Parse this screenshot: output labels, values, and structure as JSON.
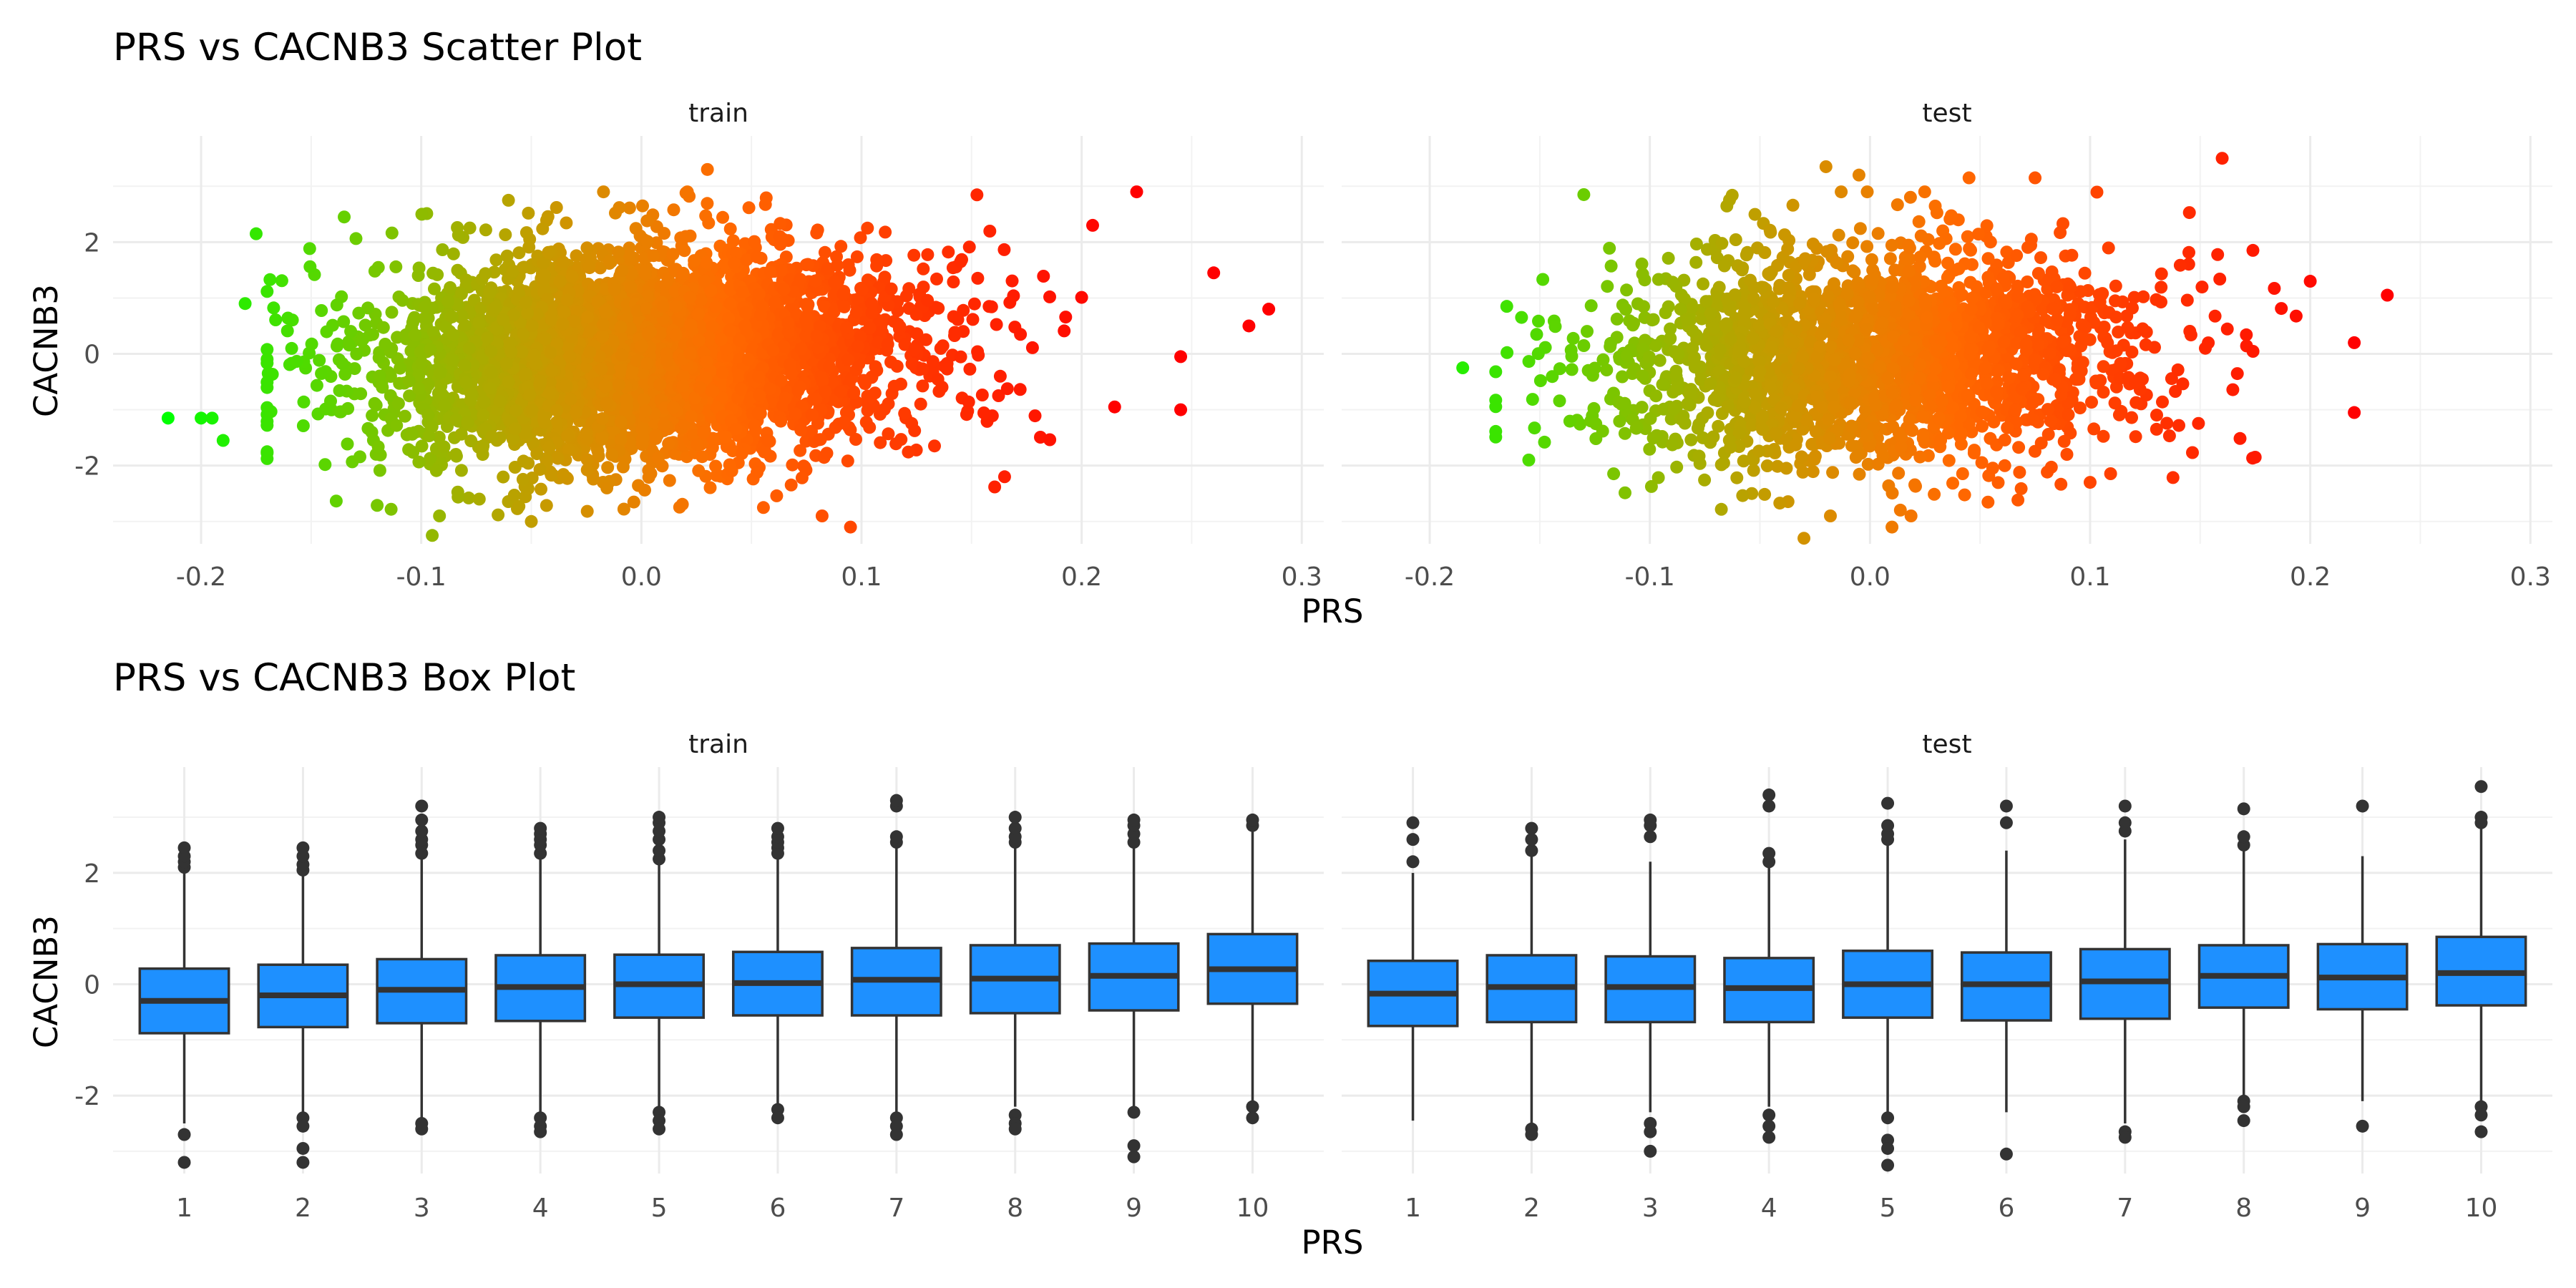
{
  "chart_data": [
    {
      "type": "scatter",
      "title": "PRS vs CACNB3 Scatter Plot",
      "xlabel": "PRS",
      "ylabel": "CACNB3",
      "panels": [
        "train",
        "test"
      ],
      "xlim": [
        -0.24,
        0.31
      ],
      "ylim": [
        -3.4,
        3.9
      ],
      "xticks": [
        -0.2,
        -0.1,
        0.0,
        0.1,
        0.2,
        0.3
      ],
      "xtick_labels": [
        "-0.2",
        "-0.1",
        "0.0",
        "0.1",
        "0.2",
        "0.3"
      ],
      "yticks": [
        -2,
        0,
        2
      ],
      "ytick_labels": [
        "-2",
        "0",
        "2"
      ],
      "color_scale": {
        "low": "#00ff00",
        "high": "#ff0000"
      },
      "distribution": {
        "train": {
          "x_mean": 0.0,
          "x_sd": 0.06,
          "y_mean_at_min_x": -0.4,
          "y_mean_at_max_x": 0.4,
          "y_sd": 0.95
        },
        "test": {
          "x_mean": 0.0,
          "x_sd": 0.06,
          "y_mean_at_min_x": -0.35,
          "y_mean_at_max_x": 0.35,
          "y_sd": 0.95
        }
      },
      "outliers": {
        "train": [
          [
            -0.215,
            -1.15
          ],
          [
            -0.2,
            -1.15
          ],
          [
            -0.195,
            -1.15
          ],
          [
            -0.175,
            2.15
          ],
          [
            -0.18,
            0.9
          ],
          [
            -0.19,
            -1.55
          ],
          [
            -0.135,
            2.45
          ],
          [
            0.03,
            3.3
          ],
          [
            -0.05,
            -3.0
          ],
          [
            -0.095,
            -3.25
          ],
          [
            0.095,
            -3.1
          ],
          [
            0.26,
            1.45
          ],
          [
            0.285,
            0.8
          ],
          [
            0.276,
            0.5
          ],
          [
            0.225,
            2.9
          ],
          [
            0.245,
            -1.0
          ],
          [
            0.245,
            -0.05
          ],
          [
            0.205,
            2.3
          ],
          [
            0.215,
            -0.95
          ],
          [
            0.165,
            -2.2
          ]
        ],
        "test": [
          [
            -0.185,
            -0.25
          ],
          [
            -0.165,
            0.85
          ],
          [
            -0.155,
            -1.9
          ],
          [
            -0.13,
            2.85
          ],
          [
            -0.02,
            3.35
          ],
          [
            -0.005,
            3.2
          ],
          [
            0.045,
            3.15
          ],
          [
            0.075,
            3.15
          ],
          [
            0.16,
            3.5
          ],
          [
            0.235,
            1.05
          ],
          [
            0.22,
            0.2
          ],
          [
            0.22,
            -1.05
          ],
          [
            0.2,
            1.3
          ],
          [
            0.175,
            -1.85
          ],
          [
            0.01,
            -3.1
          ],
          [
            -0.03,
            -3.3
          ],
          [
            0.1,
            -2.3
          ]
        ]
      }
    },
    {
      "type": "box",
      "title": "PRS vs CACNB3 Box Plot",
      "xlabel": "PRS",
      "ylabel": "CACNB3",
      "panels": [
        "train",
        "test"
      ],
      "categories": [
        "1",
        "2",
        "3",
        "4",
        "5",
        "6",
        "7",
        "8",
        "9",
        "10"
      ],
      "ylim": [
        -3.4,
        3.9
      ],
      "yticks": [
        -2,
        0,
        2
      ],
      "ytick_labels": [
        "-2",
        "0",
        "2"
      ],
      "box_color": "#1e90ff",
      "series": [
        {
          "panel": "train",
          "boxes": [
            {
              "q1": -0.88,
              "median": -0.3,
              "q3": 0.28,
              "lower": -2.5,
              "upper": 2.0,
              "outliers": [
                2.1,
                2.2,
                2.3,
                2.45,
                -2.7,
                -3.2
              ]
            },
            {
              "q1": -0.77,
              "median": -0.2,
              "q3": 0.35,
              "lower": -2.3,
              "upper": 2.0,
              "outliers": [
                2.05,
                2.15,
                2.3,
                2.45,
                -2.4,
                -2.55,
                -2.95,
                -3.2
              ]
            },
            {
              "q1": -0.7,
              "median": -0.1,
              "q3": 0.45,
              "lower": -2.4,
              "upper": 2.3,
              "outliers": [
                2.35,
                2.5,
                2.6,
                2.75,
                2.95,
                3.2,
                -2.5,
                -2.6
              ]
            },
            {
              "q1": -0.66,
              "median": -0.05,
              "q3": 0.52,
              "lower": -2.3,
              "upper": 2.3,
              "outliers": [
                2.35,
                2.5,
                2.6,
                2.7,
                2.8,
                -2.4,
                -2.55,
                -2.65
              ]
            },
            {
              "q1": -0.6,
              "median": 0.0,
              "q3": 0.53,
              "lower": -2.2,
              "upper": 2.2,
              "outliers": [
                2.25,
                2.4,
                2.6,
                2.75,
                2.9,
                3.0,
                -2.3,
                -2.45,
                -2.6
              ]
            },
            {
              "q1": -0.56,
              "median": 0.02,
              "q3": 0.58,
              "lower": -2.2,
              "upper": 2.3,
              "outliers": [
                2.35,
                2.45,
                2.55,
                2.65,
                2.8,
                -2.25,
                -2.4
              ]
            },
            {
              "q1": -0.56,
              "median": 0.08,
              "q3": 0.65,
              "lower": -2.3,
              "upper": 2.5,
              "outliers": [
                2.55,
                2.65,
                3.2,
                3.3,
                -2.4,
                -2.55,
                -2.7
              ]
            },
            {
              "q1": -0.52,
              "median": 0.1,
              "q3": 0.7,
              "lower": -2.2,
              "upper": 2.5,
              "outliers": [
                2.55,
                2.65,
                2.8,
                3.0,
                -2.35,
                -2.5,
                -2.6
              ]
            },
            {
              "q1": -0.47,
              "median": 0.15,
              "q3": 0.73,
              "lower": -2.2,
              "upper": 2.5,
              "outliers": [
                2.55,
                2.7,
                2.85,
                2.95,
                -2.3,
                -2.9,
                -3.1
              ]
            },
            {
              "q1": -0.35,
              "median": 0.27,
              "q3": 0.9,
              "lower": -2.1,
              "upper": 2.8,
              "outliers": [
                2.85,
                2.95,
                -2.2,
                -2.4
              ]
            }
          ]
        },
        {
          "panel": "test",
          "boxes": [
            {
              "q1": -0.75,
              "median": -0.17,
              "q3": 0.42,
              "lower": -2.45,
              "upper": 2.0,
              "outliers": [
                2.2,
                2.6,
                2.9
              ]
            },
            {
              "q1": -0.68,
              "median": -0.05,
              "q3": 0.52,
              "lower": -2.5,
              "upper": 2.3,
              "outliers": [
                2.4,
                2.6,
                2.8,
                -2.6,
                -2.7
              ]
            },
            {
              "q1": -0.68,
              "median": -0.05,
              "q3": 0.5,
              "lower": -2.3,
              "upper": 2.2,
              "outliers": [
                2.65,
                2.85,
                2.95,
                -2.5,
                -2.65,
                -3.0
              ]
            },
            {
              "q1": -0.68,
              "median": -0.07,
              "q3": 0.47,
              "lower": -2.2,
              "upper": 2.1,
              "outliers": [
                2.2,
                2.35,
                3.2,
                3.4,
                -2.35,
                -2.55,
                -2.75
              ]
            },
            {
              "q1": -0.6,
              "median": 0.0,
              "q3": 0.6,
              "lower": -2.3,
              "upper": 2.5,
              "outliers": [
                2.6,
                2.7,
                2.85,
                3.25,
                -2.4,
                -2.8,
                -2.95,
                -3.25
              ]
            },
            {
              "q1": -0.65,
              "median": 0.0,
              "q3": 0.57,
              "lower": -2.3,
              "upper": 2.4,
              "outliers": [
                2.9,
                3.2,
                -3.05
              ]
            },
            {
              "q1": -0.62,
              "median": 0.05,
              "q3": 0.63,
              "lower": -2.5,
              "upper": 2.6,
              "outliers": [
                2.75,
                2.9,
                3.2,
                -2.65,
                -2.75
              ]
            },
            {
              "q1": -0.42,
              "median": 0.15,
              "q3": 0.7,
              "lower": -2.0,
              "upper": 2.4,
              "outliers": [
                2.5,
                2.65,
                3.15,
                -2.1,
                -2.2,
                -2.45
              ]
            },
            {
              "q1": -0.45,
              "median": 0.12,
              "q3": 0.72,
              "lower": -2.1,
              "upper": 2.3,
              "outliers": [
                3.2,
                -2.55
              ]
            },
            {
              "q1": -0.38,
              "median": 0.2,
              "q3": 0.85,
              "lower": -2.1,
              "upper": 2.8,
              "outliers": [
                2.9,
                3.0,
                3.55,
                -2.2,
                -2.35,
                -2.65
              ]
            }
          ]
        }
      ]
    }
  ]
}
